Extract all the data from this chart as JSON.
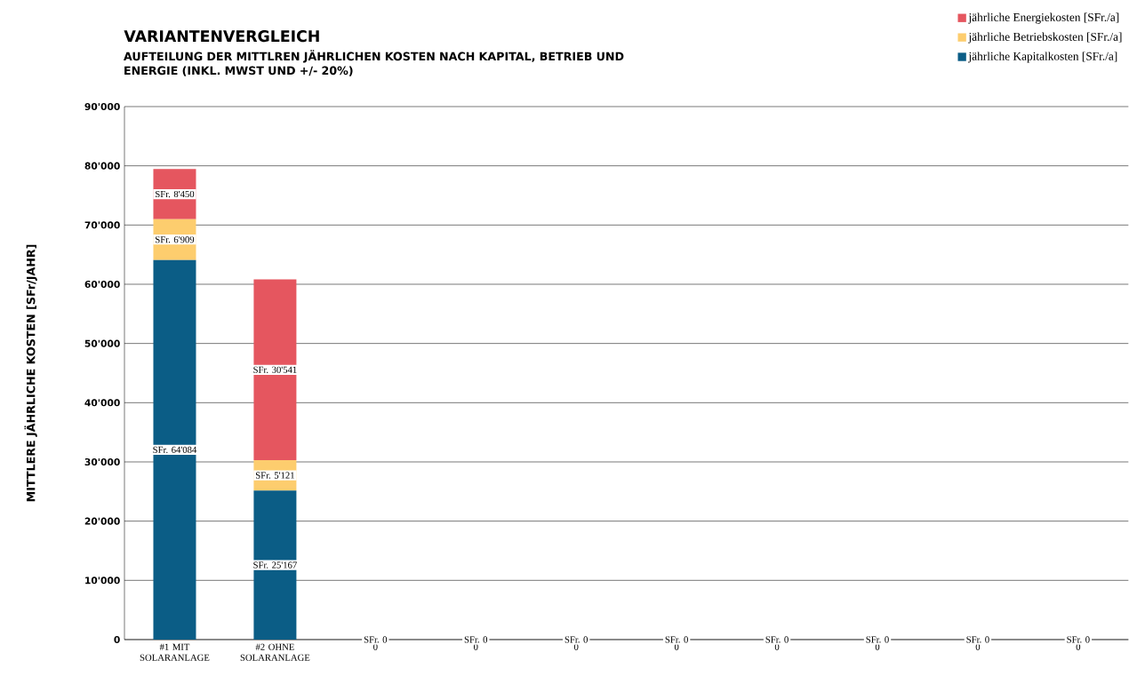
{
  "chart_data": {
    "type": "bar",
    "stacked": true,
    "title": "VARIANTENVERGLEICH",
    "subtitle": "AUFTEILUNG DER MITTLREN JÄHRLICHEN KOSTEN NACH KAPITAL, BETRIEB UND ENERGIE (INKL. MWST UND +/- 20%)",
    "ylabel": "MITTLERE JÄHRLICHE KOSTEN  [SFr/JAHR]",
    "categories": [
      "#1 MIT SOLARANLAGE",
      "#2 OHNE SOLARANLAGE",
      "0",
      "0",
      "0",
      "0",
      "0",
      "0",
      "0",
      "0"
    ],
    "series": [
      {
        "name": "jährliche Kapitalkosten [SFr./a]",
        "color": "#0b5d86",
        "values": [
          64084,
          25167,
          0,
          0,
          0,
          0,
          0,
          0,
          0,
          0
        ],
        "value_labels": [
          "SFr. 64'084",
          "SFr. 25'167",
          "SFr. 0",
          "SFr. 0",
          "SFr. 0",
          "SFr. 0",
          "SFr. 0",
          "SFr. 0",
          "SFr. 0",
          "SFr. 0"
        ]
      },
      {
        "name": "jährliche Betriebskosten [SFr./a]",
        "color": "#fdcd6e",
        "values": [
          6909,
          5121,
          0,
          0,
          0,
          0,
          0,
          0,
          0,
          0
        ],
        "value_labels": [
          "SFr. 6'909",
          "SFr. 5'121",
          null,
          null,
          null,
          null,
          null,
          null,
          null,
          null
        ]
      },
      {
        "name": "jährliche Energiekosten [SFr./a]",
        "color": "#e5565f",
        "values": [
          8450,
          30541,
          0,
          0,
          0,
          0,
          0,
          0,
          0,
          0
        ],
        "value_labels": [
          "SFr. 8'450",
          "SFr. 30'541",
          null,
          null,
          null,
          null,
          null,
          null,
          null,
          null
        ]
      }
    ],
    "ylim": [
      0,
      90000
    ],
    "yticks": [
      0,
      {
        "value": 10000,
        "label": "10'000"
      },
      {
        "value": 20000,
        "label": "20'000"
      },
      {
        "value": 30000,
        "label": "30'000"
      },
      {
        "value": 40000,
        "label": "40'000"
      },
      {
        "value": 50000,
        "label": "50'000"
      },
      {
        "value": 60000,
        "label": "60'000"
      },
      {
        "value": 70000,
        "label": "70'000"
      },
      {
        "value": 80000,
        "label": "80'000"
      },
      {
        "value": 90000,
        "label": "90'000"
      }
    ],
    "grid": "y",
    "legend": "top right",
    "marker": "square"
  }
}
